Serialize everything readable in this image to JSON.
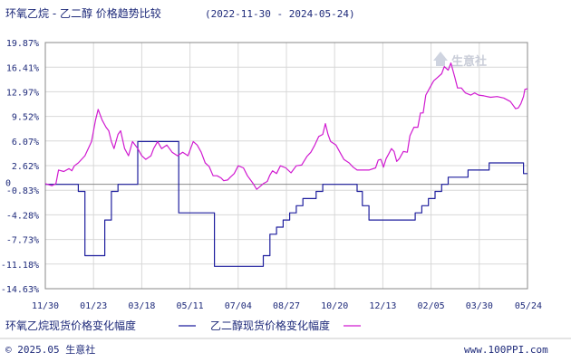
{
  "header": {
    "title": "环氧乙烷 - 乙二醇 价格趋势比较",
    "date_range": "(2022-11-30 - 2024-05-24)"
  },
  "legend": {
    "series1_label": "环氧乙烷现货价格变化幅度",
    "series2_label": "乙二醇现货价格变化幅度"
  },
  "footer": {
    "copyright": "© 2025.05 生意社",
    "site": "www.100PPI.com"
  },
  "watermark": {
    "text": "生意社"
  },
  "colors": {
    "series1": "#1f1f9e",
    "series2": "#d01ad0",
    "grid": "#d8d8d8",
    "axis_text": "#1e2a7a",
    "zero_line": "#777777"
  },
  "chart_data": {
    "type": "line",
    "x_ticks": [
      "11/30",
      "01/23",
      "03/18",
      "05/11",
      "07/04",
      "08/27",
      "10/20",
      "12/13",
      "02/05",
      "03/30",
      "05/24"
    ],
    "y_ticks": [
      "19.87%",
      "16.41%",
      "12.97%",
      "9.52%",
      "6.07%",
      "2.62%",
      "-0.83%",
      "-4.28%",
      "-7.73%",
      "-11.18%",
      "-14.63%"
    ],
    "y_tick_values": [
      19.87,
      16.41,
      12.97,
      9.52,
      6.07,
      2.62,
      -0.83,
      -4.28,
      -7.73,
      -11.18,
      -14.63
    ],
    "ylim": [
      -14.63,
      19.87
    ],
    "zero_label": "0",
    "grid": true,
    "legend_position": "bottom",
    "series": [
      {
        "name": "环氧乙烷现货价格变化幅度",
        "color": "#1f1f9e",
        "step": true,
        "points": [
          [
            0,
            0
          ],
          [
            23,
            0
          ],
          [
            25,
            -1
          ],
          [
            30,
            -10
          ],
          [
            40,
            -10
          ],
          [
            45,
            -5
          ],
          [
            50,
            -1
          ],
          [
            55,
            0
          ],
          [
            68,
            0
          ],
          [
            70,
            6
          ],
          [
            100,
            6
          ],
          [
            101,
            -4
          ],
          [
            125,
            -4
          ],
          [
            128,
            -11.5
          ],
          [
            160,
            -11.5
          ],
          [
            165,
            -10
          ],
          [
            170,
            -7
          ],
          [
            175,
            -6
          ],
          [
            180,
            -5
          ],
          [
            185,
            -4
          ],
          [
            190,
            -3
          ],
          [
            195,
            -2
          ],
          [
            205,
            -1
          ],
          [
            210,
            0
          ],
          [
            233,
            0
          ],
          [
            236,
            -1
          ],
          [
            240,
            -3
          ],
          [
            245,
            -5
          ],
          [
            275,
            -5
          ],
          [
            280,
            -4
          ],
          [
            285,
            -3
          ],
          [
            290,
            -2
          ],
          [
            295,
            -1
          ],
          [
            300,
            0
          ],
          [
            305,
            1
          ],
          [
            320,
            2
          ],
          [
            335,
            2
          ],
          [
            336,
            3
          ],
          [
            360,
            3
          ],
          [
            362,
            1.5
          ],
          [
            365,
            1.5
          ]
        ]
      },
      {
        "name": "乙二醇现货价格变化幅度",
        "color": "#d01ad0",
        "step": false,
        "points": [
          [
            0,
            0.1
          ],
          [
            5,
            -0.2
          ],
          [
            8,
            0.1
          ],
          [
            10,
            2
          ],
          [
            14,
            1.8
          ],
          [
            18,
            2.2
          ],
          [
            20,
            1.9
          ],
          [
            22,
            2.6
          ],
          [
            25,
            3
          ],
          [
            30,
            4
          ],
          [
            35,
            6
          ],
          [
            38,
            9
          ],
          [
            40,
            10.5
          ],
          [
            43,
            9
          ],
          [
            46,
            8
          ],
          [
            48,
            7.5
          ],
          [
            50,
            6
          ],
          [
            52,
            5
          ],
          [
            55,
            7
          ],
          [
            57,
            7.5
          ],
          [
            60,
            5
          ],
          [
            63,
            4
          ],
          [
            66,
            6
          ],
          [
            70,
            5
          ],
          [
            73,
            4
          ],
          [
            76,
            3.5
          ],
          [
            80,
            4
          ],
          [
            82,
            5
          ],
          [
            85,
            6
          ],
          [
            88,
            5
          ],
          [
            92,
            5.5
          ],
          [
            96,
            4.5
          ],
          [
            100,
            4
          ],
          [
            104,
            4.5
          ],
          [
            108,
            4
          ],
          [
            110,
            5
          ],
          [
            112,
            6
          ],
          [
            115,
            5.5
          ],
          [
            118,
            4.5
          ],
          [
            121,
            3
          ],
          [
            124,
            2.5
          ],
          [
            127,
            1.2
          ],
          [
            130,
            1.2
          ],
          [
            133,
            0.9
          ],
          [
            135,
            0.5
          ],
          [
            138,
            0.6
          ],
          [
            140,
            1
          ],
          [
            143,
            1.5
          ],
          [
            146,
            2.6
          ],
          [
            150,
            2.3
          ],
          [
            153,
            1.2
          ],
          [
            157,
            0.2
          ],
          [
            160,
            -0.7
          ],
          [
            162,
            -0.4
          ],
          [
            165,
            0.1
          ],
          [
            168,
            0.4
          ],
          [
            170,
            1.3
          ],
          [
            172,
            1.9
          ],
          [
            175,
            1.5
          ],
          [
            178,
            2.6
          ],
          [
            182,
            2.3
          ],
          [
            186,
            1.6
          ],
          [
            190,
            2.6
          ],
          [
            194,
            2.7
          ],
          [
            198,
            3.9
          ],
          [
            201,
            4.5
          ],
          [
            204,
            5.5
          ],
          [
            207,
            6.7
          ],
          [
            210,
            7
          ],
          [
            212,
            8.5
          ],
          [
            214,
            7
          ],
          [
            216,
            6
          ],
          [
            220,
            5.5
          ],
          [
            223,
            4.5
          ],
          [
            226,
            3.5
          ],
          [
            230,
            3
          ],
          [
            233,
            2.4
          ],
          [
            236,
            2
          ],
          [
            240,
            2
          ],
          [
            245,
            2
          ],
          [
            250,
            2.3
          ],
          [
            252,
            3.4
          ],
          [
            254,
            3.5
          ],
          [
            256,
            2.4
          ],
          [
            258,
            3.6
          ],
          [
            260,
            4.3
          ],
          [
            262,
            5
          ],
          [
            264,
            4.6
          ],
          [
            266,
            3.2
          ],
          [
            268,
            3.6
          ],
          [
            271,
            4.6
          ],
          [
            274,
            4.5
          ],
          [
            276,
            6.8
          ],
          [
            279,
            8
          ],
          [
            282,
            8
          ],
          [
            284,
            10
          ],
          [
            286,
            10
          ],
          [
            288,
            12.5
          ],
          [
            291,
            13.5
          ],
          [
            294,
            14.5
          ],
          [
            297,
            15
          ],
          [
            300,
            15.5
          ],
          [
            302,
            16.5
          ],
          [
            305,
            16
          ],
          [
            307,
            17
          ],
          [
            310,
            15
          ],
          [
            312,
            13.5
          ],
          [
            315,
            13.5
          ],
          [
            318,
            12.8
          ],
          [
            322,
            12.5
          ],
          [
            325,
            12.8
          ],
          [
            328,
            12.5
          ],
          [
            332,
            12.4
          ],
          [
            337,
            12.2
          ],
          [
            342,
            12.3
          ],
          [
            347,
            12.1
          ],
          [
            352,
            11.6
          ],
          [
            356,
            10.6
          ],
          [
            358,
            10.7
          ],
          [
            360,
            11.3
          ],
          [
            362,
            12.3
          ],
          [
            363,
            13.3
          ],
          [
            365,
            13.4
          ]
        ]
      }
    ]
  }
}
